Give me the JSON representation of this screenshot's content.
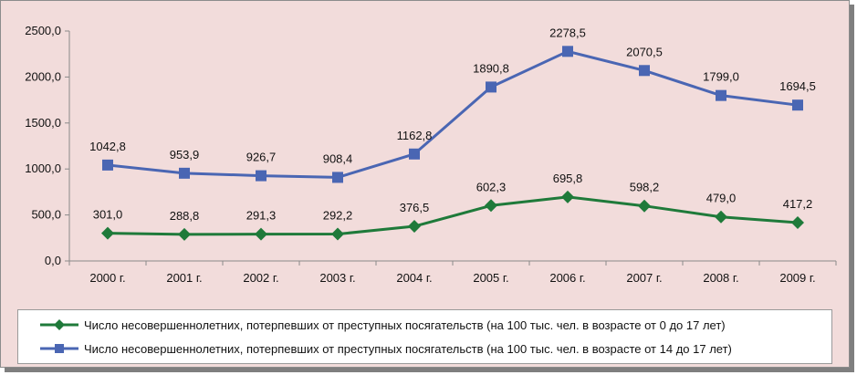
{
  "chart_data": {
    "type": "line",
    "title": "",
    "xlabel": "",
    "ylabel": "",
    "ylim": [
      0,
      2500
    ],
    "y_ticks": [
      "0,0",
      "500,0",
      "1000,0",
      "1500,0",
      "2000,0",
      "2500,0"
    ],
    "y_tick_values": [
      0,
      500,
      1000,
      1500,
      2000,
      2500
    ],
    "categories": [
      "2000 г.",
      "2001 г.",
      "2002 г.",
      "2003 г.",
      "2004 г.",
      "2005 г.",
      "2006 г.",
      "2007 г.",
      "2008 г.",
      "2009 г."
    ],
    "grid": false,
    "legend_position": "bottom",
    "series": [
      {
        "name": "Число несовершеннолетних, потерпевших от преступных посягательств (на 100 тыс. чел. в возрасте от 0 до 17 лет)",
        "values": [
          301.0,
          288.8,
          291.3,
          292.2,
          376.5,
          602.3,
          695.8,
          598.2,
          479.0,
          417.2
        ],
        "labels": [
          "301,0",
          "288,8",
          "291,3",
          "292,2",
          "376,5",
          "602,3",
          "695,8",
          "598,2",
          "479,0",
          "417,2"
        ],
        "color": "#1f7a3a",
        "marker": "diamond"
      },
      {
        "name": "Число несовершеннолетних, потерпевших от преступных посягательств (на 100 тыс. чел. в возрасте от 14 до 17 лет)",
        "values": [
          1042.8,
          953.9,
          926.7,
          908.4,
          1162.8,
          1890.8,
          2278.5,
          2070.5,
          1799.0,
          1694.5
        ],
        "labels": [
          "1042,8",
          "953,9",
          "926,7",
          "908,4",
          "1162,8",
          "1890,8",
          "2278,5",
          "2070,5",
          "1799,0",
          "1694,5"
        ],
        "color": "#4a66b3",
        "marker": "square"
      }
    ]
  }
}
